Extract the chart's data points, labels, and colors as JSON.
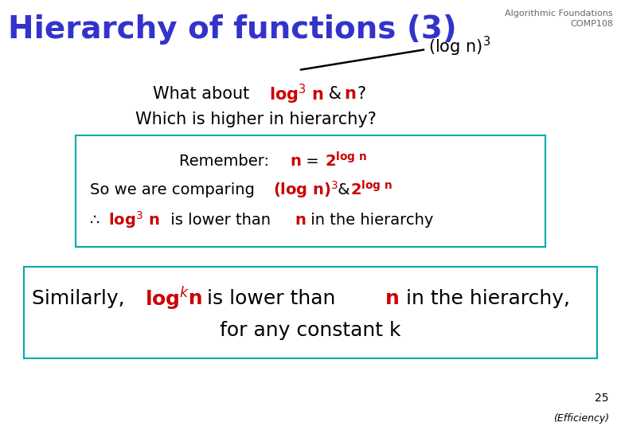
{
  "bg_color": "#ffffff",
  "title": "Hierarchy of functions (3)",
  "title_color": "#3333cc",
  "title_fontsize": 28,
  "header_color": "#666666",
  "header_fontsize": 8,
  "black": "#000000",
  "red": "#cc0000",
  "box_edgecolor": "#00aaaa",
  "slide_number": "25",
  "footer": "(Efficiency)"
}
